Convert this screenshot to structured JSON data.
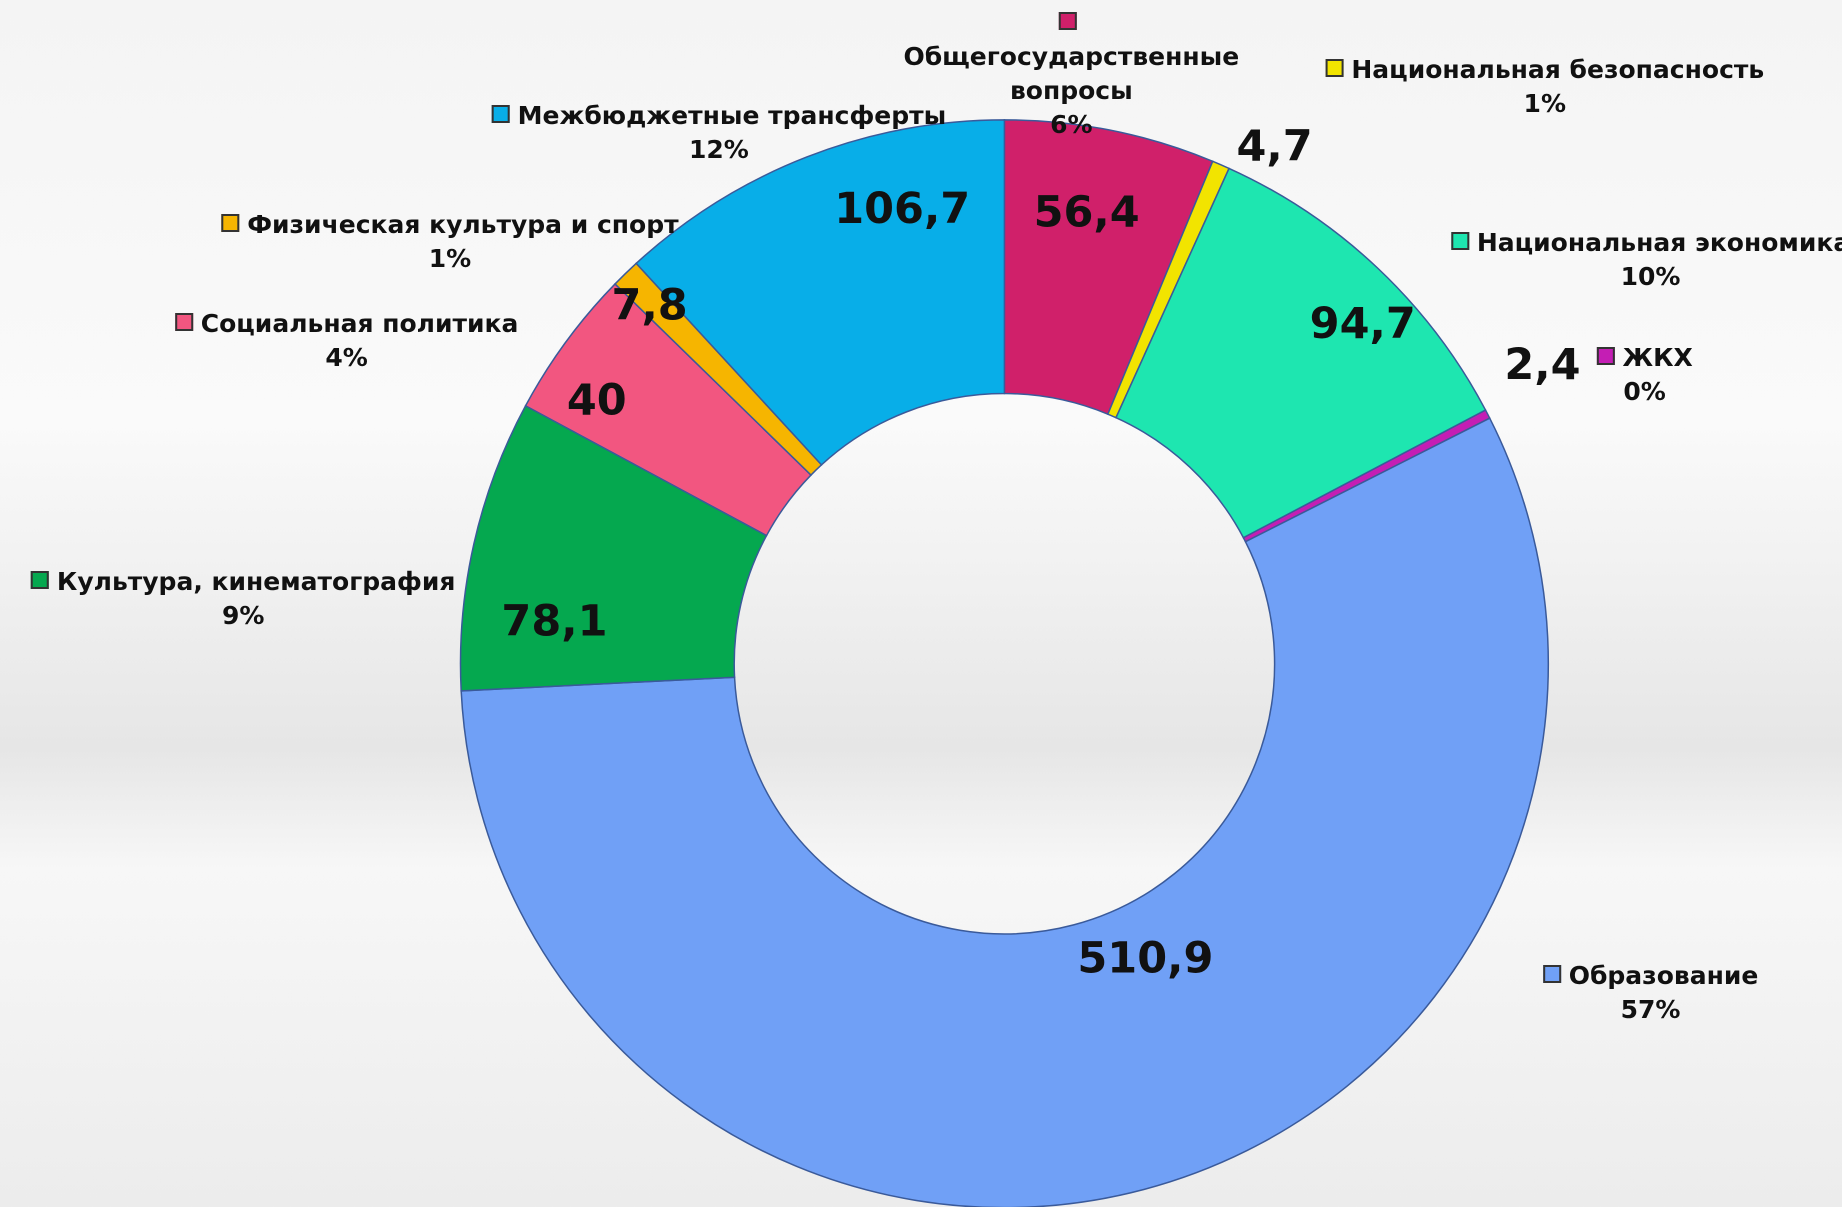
{
  "chart_data": {
    "type": "donut",
    "categories": [
      "Общегосударственные вопросы",
      "Национальная безопасность",
      "Национальная экономика",
      "ЖКХ",
      "Образование",
      "Культура, кинематография",
      "Социальная политика",
      "Физическая культура и спорт",
      "Межбюджетные трансферты"
    ],
    "values": [
      56.4,
      4.7,
      94.7,
      2.4,
      510.9,
      78.1,
      40,
      7.8,
      106.7
    ],
    "value_labels": [
      "56,4",
      "4,7",
      "94,7",
      "2,4",
      "510,9",
      "78,1",
      "40",
      "7,8",
      "106,7"
    ],
    "percents": [
      6,
      1,
      10,
      0,
      57,
      9,
      4,
      1,
      12
    ],
    "percent_labels": [
      "6%",
      "1%",
      "10%",
      "0%",
      "57%",
      "9%",
      "4%",
      "1%",
      "12%"
    ],
    "colors": [
      "#d0206a",
      "#f2e400",
      "#1ee6b0",
      "#c41eb4",
      "#70a0f6",
      "#05a84f",
      "#f25680",
      "#f6b500",
      "#08aee8"
    ]
  }
}
